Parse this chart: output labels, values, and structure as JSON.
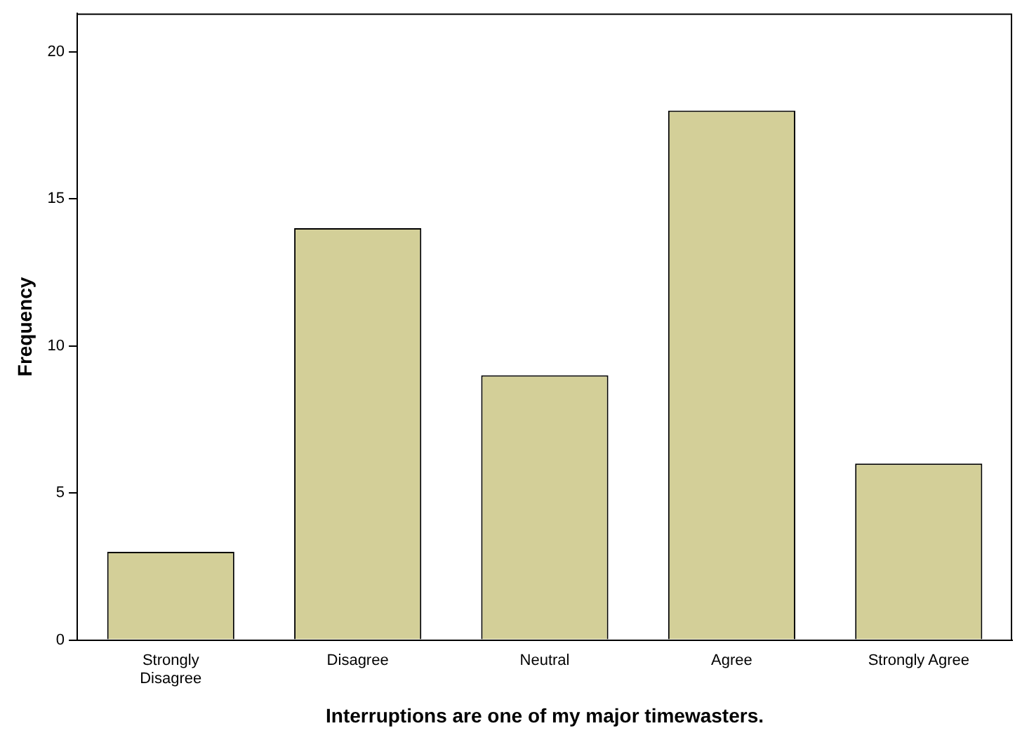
{
  "chart_data": {
    "type": "bar",
    "xlabel": "Interruptions are one of my major timewasters.",
    "ylabel": "Frequency",
    "categories": [
      "Strongly Disagree",
      "Disagree",
      "Neutral",
      "Agree",
      "Strongly Agree"
    ],
    "values": [
      3,
      14,
      9,
      18,
      6
    ],
    "color": "#d3cf98",
    "ylim": [
      0,
      21.3
    ],
    "yticks": [
      0,
      5,
      10,
      15,
      20
    ],
    "grid": false,
    "legend": false
  }
}
